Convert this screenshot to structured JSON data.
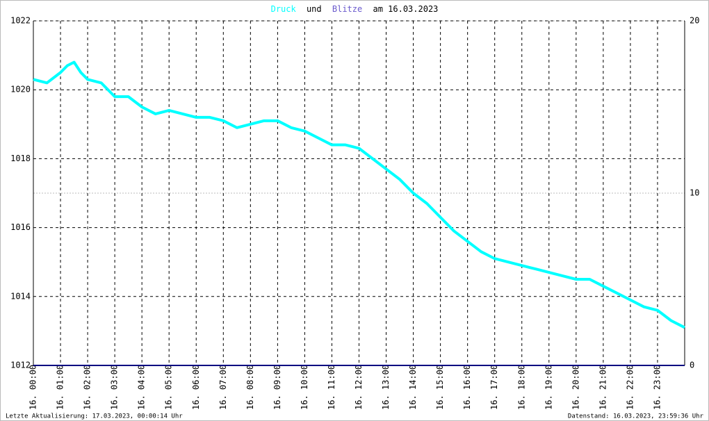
{
  "chart_data": {
    "type": "line",
    "title_words": [
      "und",
      "am 16.03.2023"
    ],
    "footer_left": "Letzte Aktualisierung: 17.03.2023, 00:00:14 Uhr",
    "footer_right": "Datenstand: 16.03.2023, 23:59:36 Uhr",
    "xlim": [
      0,
      24
    ],
    "xticks": [
      {
        "value": 0,
        "label": "16. 00:00"
      },
      {
        "value": 1,
        "label": "16. 01:00"
      },
      {
        "value": 2,
        "label": "16. 02:00"
      },
      {
        "value": 3,
        "label": "16. 03:00"
      },
      {
        "value": 4,
        "label": "16. 04:00"
      },
      {
        "value": 5,
        "label": "16. 05:00"
      },
      {
        "value": 6,
        "label": "16. 06:00"
      },
      {
        "value": 7,
        "label": "16. 07:00"
      },
      {
        "value": 8,
        "label": "16. 08:00"
      },
      {
        "value": 9,
        "label": "16. 09:00"
      },
      {
        "value": 10,
        "label": "16. 10:00"
      },
      {
        "value": 11,
        "label": "16. 11:00"
      },
      {
        "value": 12,
        "label": "16. 12:00"
      },
      {
        "value": 13,
        "label": "16. 13:00"
      },
      {
        "value": 14,
        "label": "16. 14:00"
      },
      {
        "value": 15,
        "label": "16. 15:00"
      },
      {
        "value": 16,
        "label": "16. 16:00"
      },
      {
        "value": 17,
        "label": "16. 17:00"
      },
      {
        "value": 18,
        "label": "16. 18:00"
      },
      {
        "value": 19,
        "label": "16. 19:00"
      },
      {
        "value": 20,
        "label": "16. 20:00"
      },
      {
        "value": 21,
        "label": "16. 21:00"
      },
      {
        "value": 22,
        "label": "16. 22:00"
      },
      {
        "value": 23,
        "label": "16. 23:00"
      }
    ],
    "ylim": [
      1012,
      1022
    ],
    "yticks": [
      1012,
      1014,
      1016,
      1018,
      1020,
      1022
    ],
    "y2lim": [
      0,
      20
    ],
    "y2ticks": [
      0,
      10,
      20
    ],
    "grid": true,
    "series": [
      {
        "name": "Druck",
        "color": "#00ffff",
        "x": [
          0,
          0.5,
          1,
          1.25,
          1.5,
          1.75,
          2,
          2.5,
          3,
          3.5,
          4,
          4.5,
          5,
          5.5,
          6,
          6.5,
          7,
          7.5,
          8,
          8.5,
          9,
          9.5,
          10,
          10.5,
          11,
          11.5,
          12,
          12.5,
          13,
          13.5,
          14,
          14.5,
          15,
          15.5,
          16,
          16.5,
          17,
          17.5,
          18,
          18.5,
          19,
          19.5,
          20,
          20.5,
          21,
          21.5,
          22,
          22.5,
          23,
          23.5,
          24
        ],
        "values": [
          1020.3,
          1020.2,
          1020.5,
          1020.7,
          1020.8,
          1020.5,
          1020.3,
          1020.2,
          1019.8,
          1019.8,
          1019.5,
          1019.3,
          1019.4,
          1019.3,
          1019.2,
          1019.2,
          1019.1,
          1018.9,
          1019.0,
          1019.1,
          1019.1,
          1018.9,
          1018.8,
          1018.6,
          1018.4,
          1018.4,
          1018.3,
          1018.0,
          1017.7,
          1017.4,
          1017.0,
          1016.7,
          1016.3,
          1015.9,
          1015.6,
          1015.3,
          1015.1,
          1015.0,
          1014.9,
          1014.8,
          1014.7,
          1014.6,
          1014.5,
          1014.5,
          1014.3,
          1014.1,
          1013.9,
          1013.7,
          1013.6,
          1013.3,
          1013.1
        ]
      },
      {
        "name": "Blitze",
        "color": "#000080",
        "axis": "y2",
        "x": [
          0,
          24
        ],
        "values": [
          0,
          0
        ]
      }
    ]
  }
}
